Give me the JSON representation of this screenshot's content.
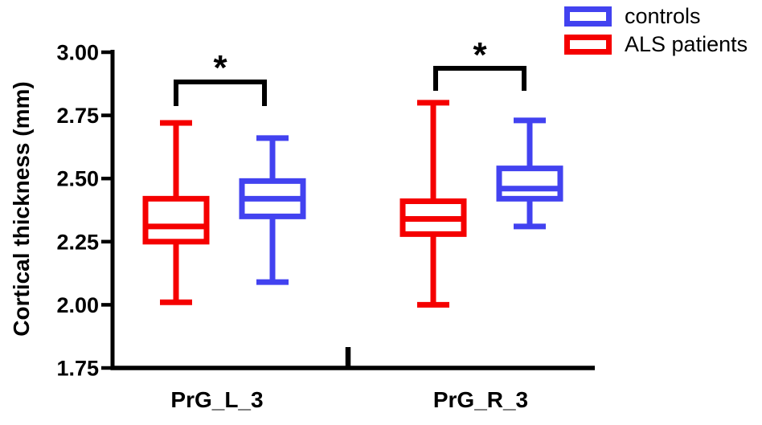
{
  "chart_data": {
    "type": "boxplot",
    "title": "",
    "ylabel": "Cortical thickness (mm)",
    "xlabel": "",
    "ylim": [
      1.75,
      3.0
    ],
    "yticks": [
      3.0,
      2.75,
      2.5,
      2.25,
      2.0,
      1.75
    ],
    "ytick_labels": [
      "3.00",
      "2.75",
      "2.50",
      "2.25",
      "2.00",
      "1.75"
    ],
    "categories": [
      "PrG_L_3",
      "PrG_R_3"
    ],
    "grid": false,
    "legend_position": "top-right",
    "axis_color": "#000000",
    "series": [
      {
        "name": "ALS patients",
        "color": "#f50000",
        "boxes": [
          {
            "category": "PrG_L_3",
            "min": 2.01,
            "q1": 2.25,
            "median": 2.31,
            "q3": 2.42,
            "max": 2.72
          },
          {
            "category": "PrG_R_3",
            "min": 2.0,
            "q1": 2.28,
            "median": 2.34,
            "q3": 2.41,
            "max": 2.8
          }
        ]
      },
      {
        "name": "controls",
        "color": "#4242f0",
        "boxes": [
          {
            "category": "PrG_L_3",
            "min": 2.09,
            "q1": 2.35,
            "median": 2.42,
            "q3": 2.49,
            "max": 2.66
          },
          {
            "category": "PrG_R_3",
            "min": 2.31,
            "q1": 2.42,
            "median": 2.46,
            "q3": 2.54,
            "max": 2.73
          }
        ]
      }
    ],
    "significance_brackets": [
      {
        "category": "PrG_L_3",
        "between": [
          "ALS patients",
          "controls"
        ],
        "label": "*"
      },
      {
        "category": "PrG_R_3",
        "between": [
          "ALS patients",
          "controls"
        ],
        "label": "*"
      }
    ]
  },
  "legend": {
    "items": [
      {
        "label": "controls",
        "color": "#4242f0"
      },
      {
        "label": "ALS patients",
        "color": "#f50000"
      }
    ]
  }
}
